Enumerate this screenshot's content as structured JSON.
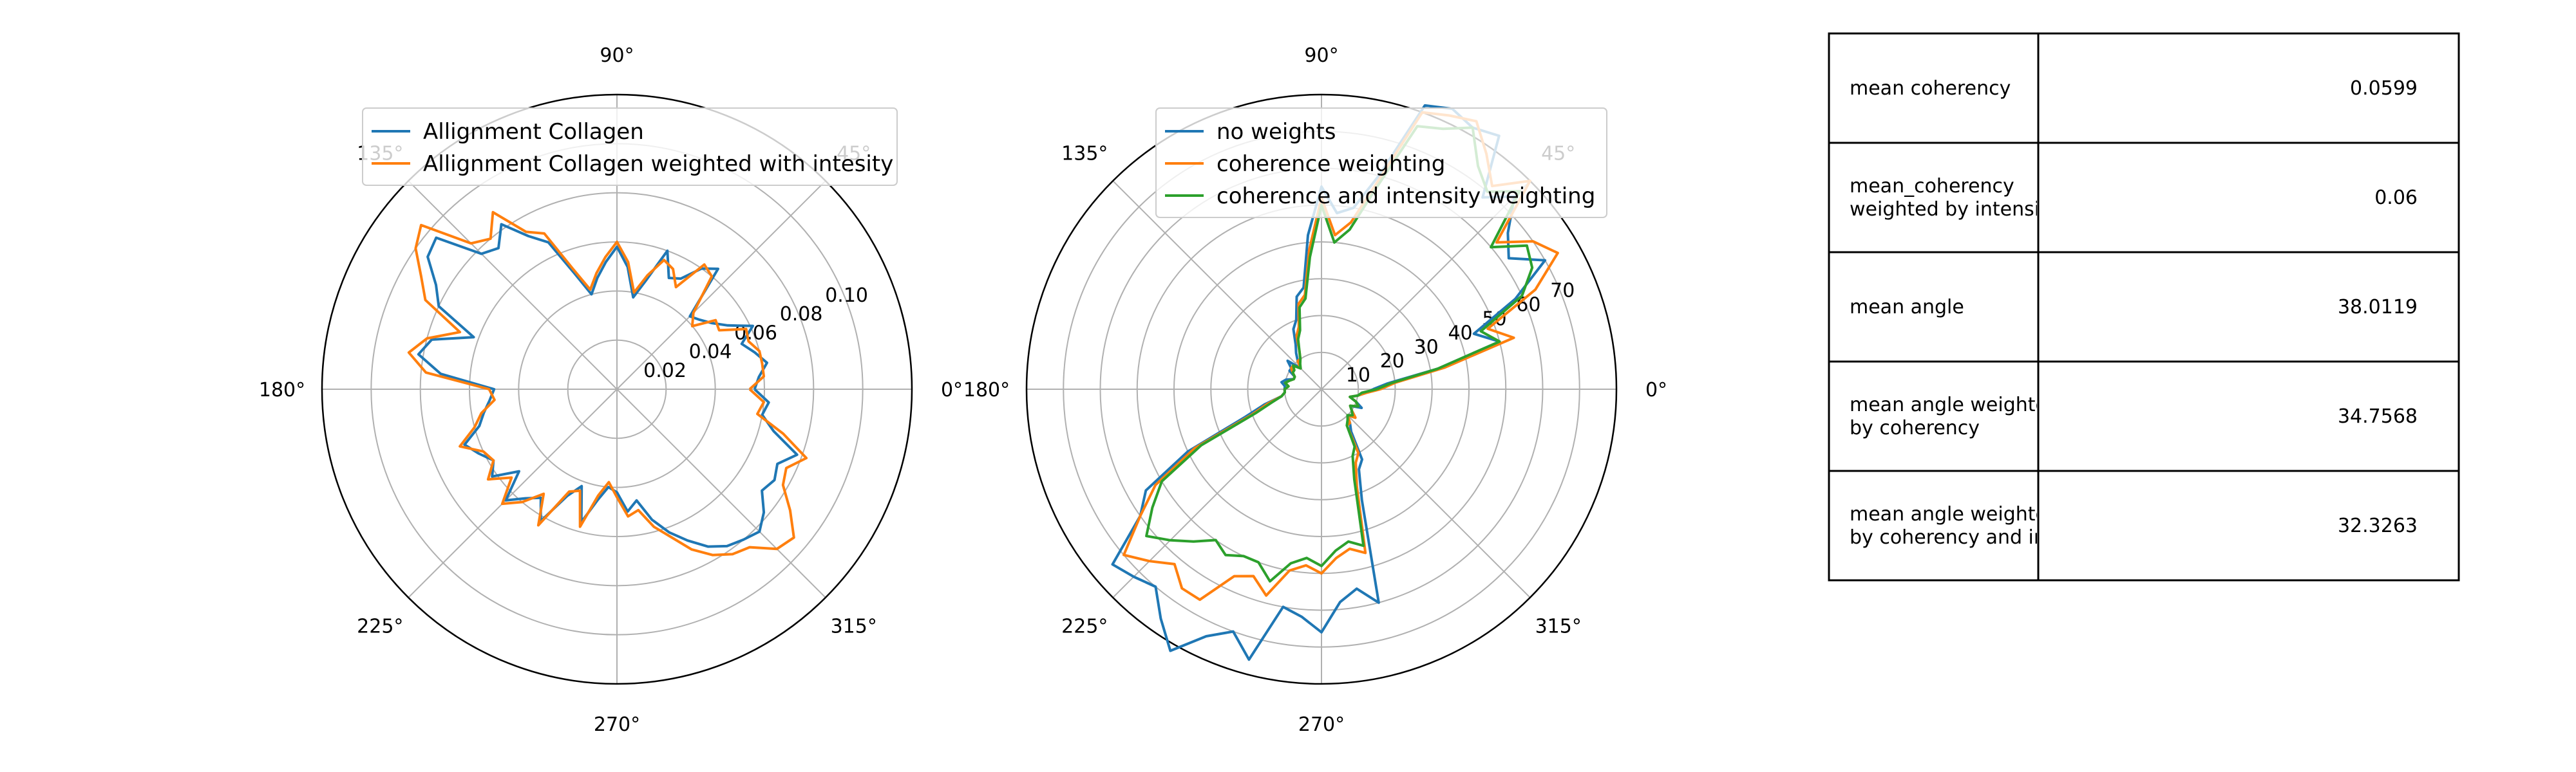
{
  "chart_data": [
    {
      "type": "polar-line",
      "angle_ticks": [
        "0°",
        "45°",
        "90°",
        "135°",
        "180°",
        "225°",
        "270°",
        "315°"
      ],
      "angle_tick_degrees": [
        0,
        45,
        90,
        135,
        180,
        225,
        270,
        315
      ],
      "radial_ticks": [
        "0.02",
        "0.04",
        "0.06",
        "0.08",
        "0.10"
      ],
      "radial_tick_values": [
        0.02,
        0.04,
        0.06,
        0.08,
        0.1
      ],
      "rmax": 0.12,
      "legend_location": "upper-right",
      "series": [
        {
          "name": "Allignment Collagen",
          "color": "#1f77b4",
          "theta_deg": [
            0,
            5,
            10,
            15,
            20,
            25,
            30,
            35,
            40,
            45,
            50,
            55,
            60,
            65,
            70,
            75,
            80,
            85,
            90,
            95,
            100,
            105,
            110,
            115,
            120,
            125,
            130,
            135,
            140,
            145,
            150,
            155,
            160,
            165,
            170,
            175,
            180,
            185,
            190,
            195,
            200,
            205,
            210,
            215,
            220,
            225,
            230,
            235,
            240,
            245,
            250,
            255,
            260,
            265,
            270,
            275,
            280,
            285,
            290,
            295,
            300,
            305,
            310,
            315,
            320,
            325,
            330,
            335,
            340,
            345,
            350,
            355
          ],
          "r": [
            0.056,
            0.058,
            0.062,
            0.058,
            0.054,
            0.061,
            0.052,
            0.047,
            0.044,
            0.042,
            0.064,
            0.06,
            0.052,
            0.05,
            0.06,
            0.046,
            0.038,
            0.05,
            0.058,
            0.052,
            0.046,
            0.04,
            0.05,
            0.066,
            0.072,
            0.082,
            0.075,
            0.078,
            0.096,
            0.094,
            0.085,
            0.08,
            0.062,
            0.078,
            0.082,
            0.072,
            0.05,
            0.052,
            0.055,
            0.058,
            0.066,
            0.062,
            0.058,
            0.062,
            0.052,
            0.064,
            0.058,
            0.054,
            0.062,
            0.048,
            0.042,
            0.056,
            0.046,
            0.04,
            0.042,
            0.05,
            0.046,
            0.055,
            0.062,
            0.068,
            0.074,
            0.078,
            0.08,
            0.082,
            0.078,
            0.072,
            0.074,
            0.072,
            0.078,
            0.066,
            0.06,
            0.062
          ]
        },
        {
          "name": "Allignment Collagen weighted with intesity",
          "color": "#ff7f0e",
          "theta_deg": [
            0,
            5,
            10,
            15,
            20,
            25,
            30,
            35,
            40,
            45,
            50,
            55,
            60,
            65,
            70,
            75,
            80,
            85,
            90,
            95,
            100,
            105,
            110,
            115,
            120,
            125,
            130,
            135,
            140,
            145,
            150,
            155,
            160,
            165,
            170,
            175,
            180,
            185,
            190,
            195,
            200,
            205,
            210,
            215,
            220,
            225,
            230,
            235,
            240,
            245,
            250,
            255,
            260,
            265,
            270,
            275,
            280,
            285,
            290,
            295,
            300,
            305,
            310,
            315,
            320,
            325,
            330,
            335,
            340,
            345,
            350,
            355
          ],
          "r": [
            0.054,
            0.06,
            0.06,
            0.06,
            0.057,
            0.058,
            0.048,
            0.049,
            0.04,
            0.044,
            0.06,
            0.062,
            0.048,
            0.054,
            0.056,
            0.048,
            0.04,
            0.052,
            0.06,
            0.054,
            0.048,
            0.042,
            0.052,
            0.07,
            0.074,
            0.088,
            0.08,
            0.084,
            0.104,
            0.1,
            0.092,
            0.086,
            0.068,
            0.08,
            0.086,
            0.078,
            0.052,
            0.05,
            0.056,
            0.06,
            0.068,
            0.06,
            0.058,
            0.064,
            0.056,
            0.066,
            0.06,
            0.052,
            0.064,
            0.046,
            0.044,
            0.058,
            0.044,
            0.038,
            0.044,
            0.052,
            0.05,
            0.058,
            0.064,
            0.072,
            0.078,
            0.082,
            0.084,
            0.092,
            0.094,
            0.086,
            0.078,
            0.076,
            0.082,
            0.07,
            0.058,
            0.06
          ]
        }
      ]
    },
    {
      "type": "polar-line",
      "angle_ticks": [
        "0°",
        "45°",
        "90°",
        "135°",
        "180°",
        "225°",
        "270°",
        "315°"
      ],
      "angle_tick_degrees": [
        0,
        45,
        90,
        135,
        180,
        225,
        270,
        315
      ],
      "radial_ticks": [
        "10",
        "20",
        "30",
        "40",
        "50",
        "60",
        "70"
      ],
      "radial_tick_values": [
        10,
        20,
        30,
        40,
        50,
        60,
        70
      ],
      "rmax": 80,
      "legend_location": "upper-right",
      "series": [
        {
          "name": "no weights",
          "color": "#1f77b4",
          "theta_deg": [
            0,
            5,
            10,
            15,
            20,
            25,
            30,
            35,
            40,
            45,
            50,
            55,
            60,
            65,
            70,
            75,
            80,
            85,
            90,
            95,
            100,
            105,
            110,
            115,
            120,
            125,
            130,
            135,
            140,
            145,
            150,
            155,
            160,
            165,
            170,
            175,
            180,
            185,
            190,
            195,
            200,
            205,
            210,
            215,
            220,
            225,
            230,
            235,
            240,
            245,
            250,
            255,
            260,
            265,
            270,
            275,
            280,
            285,
            290,
            295,
            300,
            305,
            310,
            315,
            320,
            325,
            330,
            335,
            340,
            345,
            350,
            355
          ],
          "r": [
            14,
            18,
            32,
            50,
            44,
            58,
            70,
            62,
            66,
            74,
            68,
            84,
            82,
            84,
            82,
            60,
            50,
            48,
            55,
            42,
            28,
            26,
            20,
            18,
            14,
            12,
            10,
            8,
            12,
            10,
            10,
            8,
            8,
            10,
            11,
            10,
            10,
            10,
            11,
            16,
            22,
            40,
            55,
            60,
            74,
            72,
            70,
            76,
            82,
            74,
            70,
            76,
            60,
            62,
            66,
            58,
            55,
            60,
            32,
            24,
            22,
            14,
            12,
            10,
            12,
            10,
            9,
            12,
            10,
            8,
            10,
            12
          ]
        },
        {
          "name": "coherence weighting",
          "color": "#ff7f0e",
          "theta_deg": [
            0,
            5,
            10,
            15,
            20,
            25,
            30,
            35,
            40,
            45,
            50,
            55,
            60,
            65,
            70,
            75,
            80,
            85,
            90,
            95,
            100,
            105,
            110,
            115,
            120,
            125,
            130,
            135,
            140,
            145,
            150,
            155,
            160,
            165,
            170,
            175,
            180,
            185,
            190,
            195,
            200,
            205,
            210,
            215,
            220,
            225,
            230,
            235,
            240,
            245,
            250,
            255,
            260,
            265,
            270,
            275,
            280,
            285,
            290,
            295,
            300,
            305,
            310,
            315,
            320,
            325,
            330,
            335,
            340,
            345,
            350,
            355
          ],
          "r": [
            16,
            20,
            34,
            54,
            48,
            64,
            74,
            70,
            62,
            80,
            72,
            78,
            84,
            82,
            80,
            58,
            46,
            42,
            52,
            38,
            26,
            24,
            18,
            16,
            12,
            10,
            10,
            8,
            10,
            10,
            9,
            8,
            8,
            9,
            10,
            9,
            10,
            10,
            11,
            15,
            20,
            38,
            52,
            60,
            70,
            66,
            62,
            66,
            66,
            56,
            54,
            58,
            50,
            48,
            50,
            46,
            44,
            46,
            28,
            22,
            20,
            12,
            12,
            10,
            12,
            10,
            9,
            11,
            10,
            8,
            10,
            12
          ]
        },
        {
          "name": "coherence and intensity weighting",
          "color": "#2ca02c",
          "theta_deg": [
            0,
            5,
            10,
            15,
            20,
            25,
            30,
            35,
            40,
            45,
            50,
            55,
            60,
            65,
            70,
            75,
            80,
            85,
            90,
            95,
            100,
            105,
            110,
            115,
            120,
            125,
            130,
            135,
            140,
            145,
            150,
            155,
            160,
            165,
            170,
            175,
            180,
            185,
            190,
            195,
            200,
            205,
            210,
            215,
            220,
            225,
            230,
            235,
            240,
            245,
            250,
            255,
            260,
            265,
            270,
            275,
            280,
            285,
            290,
            295,
            300,
            305,
            310,
            315,
            320,
            325,
            330,
            335,
            340,
            345,
            350,
            355
          ],
          "r": [
            15,
            19,
            32,
            50,
            46,
            60,
            66,
            68,
            60,
            76,
            70,
            74,
            82,
            78,
            76,
            56,
            44,
            40,
            50,
            36,
            25,
            23,
            17,
            15,
            12,
            10,
            9,
            8,
            10,
            9,
            9,
            8,
            8,
            9,
            10,
            9,
            10,
            10,
            11,
            14,
            19,
            36,
            50,
            56,
            62,
            58,
            54,
            50,
            52,
            50,
            50,
            54,
            48,
            46,
            48,
            44,
            42,
            44,
            26,
            20,
            18,
            12,
            11,
            10,
            11,
            10,
            9,
            11,
            10,
            8,
            10,
            11
          ]
        }
      ]
    }
  ],
  "table": {
    "rows": [
      {
        "label": "mean coherency",
        "value": "0.0599"
      },
      {
        "label": "mean_coherency\nweighted by intensit",
        "value": "0.06"
      },
      {
        "label": "mean angle",
        "value": "38.0119"
      },
      {
        "label": "mean angle weighte\nby coherency",
        "value": "34.7568"
      },
      {
        "label": "mean angle weighte\nby coherency and in",
        "value": "32.3263"
      }
    ]
  }
}
